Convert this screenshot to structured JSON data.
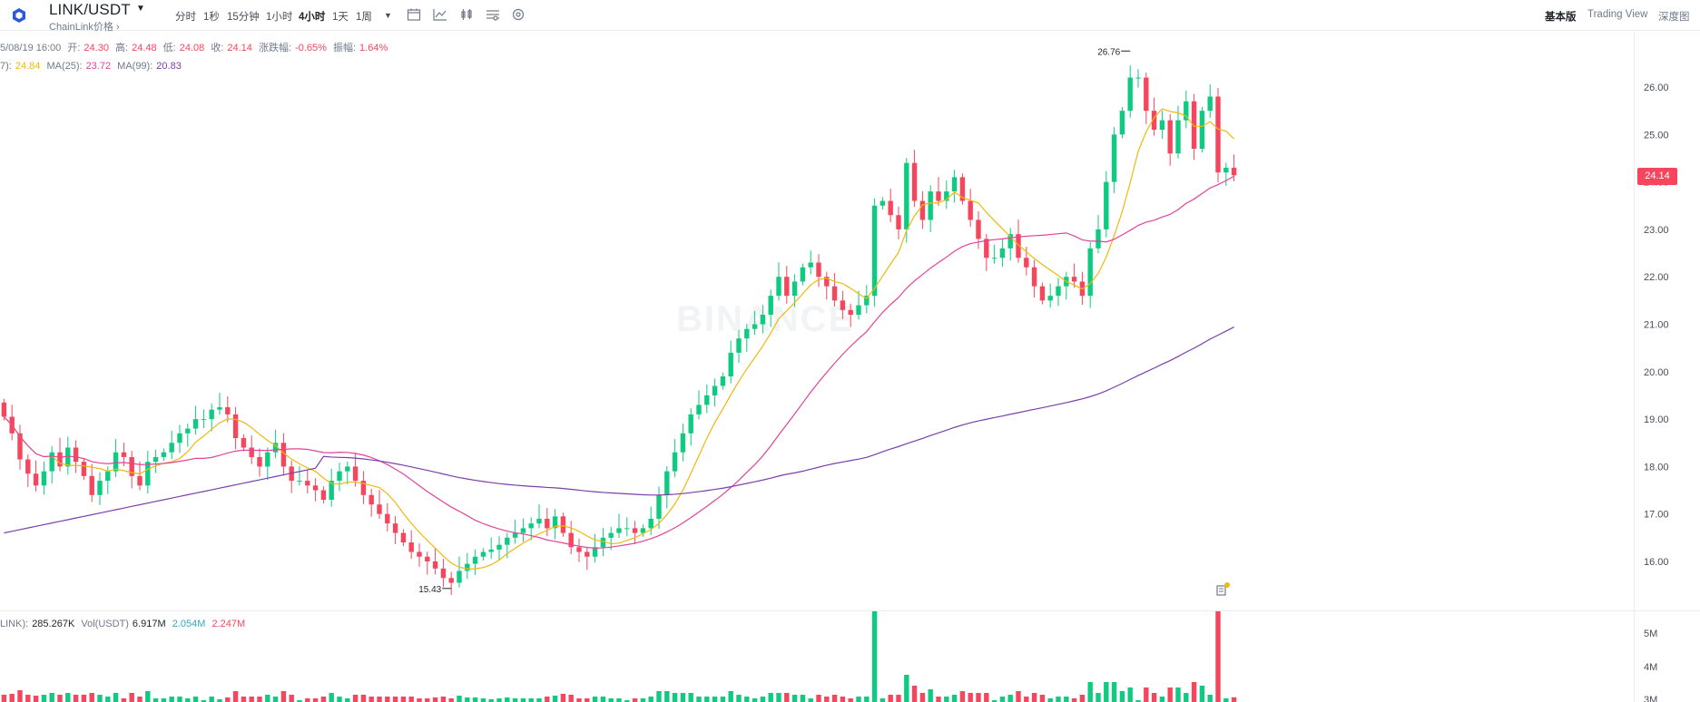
{
  "header": {
    "pair": "LINK/USDT",
    "subtitle": "ChainLink价格 ›",
    "intervals": [
      "分时",
      "1秒",
      "15分钟",
      "1小时",
      "4小时",
      "1天",
      "1周"
    ],
    "active_interval": "4小时",
    "views": [
      "基本版",
      "Trading View",
      "深度图"
    ],
    "active_view": "基本版"
  },
  "ohlc": {
    "date": "5/08/19 16:00",
    "open_label": "开:",
    "open": "24.30",
    "high_label": "高:",
    "high": "24.48",
    "low_label": "低:",
    "low": "24.08",
    "close_label": "收:",
    "close": "24.14",
    "change_label": "涨跌幅:",
    "change": "-0.65%",
    "amp_label": "振幅:",
    "amp": "1.64%"
  },
  "ma": {
    "ma7_label": "7):",
    "ma7": "24.84",
    "ma25_label": "MA(25):",
    "ma25": "23.72",
    "ma99_label": "MA(99):",
    "ma99": "20.83"
  },
  "volume_info": {
    "label1": "LINK):",
    "vol_link": "285.267K",
    "label2": "Vol(USDT)",
    "vol_usdt": "6.917M",
    "buy": "2.054M",
    "sell": "2.247M"
  },
  "price_axis": [
    "26.00",
    "25.00",
    "24.00",
    "23.00",
    "22.00",
    "21.00",
    "20.00",
    "19.00",
    "18.00",
    "17.00",
    "16.00"
  ],
  "volume_axis": [
    "5M",
    "4M",
    "3M"
  ],
  "last_price": "24.14",
  "annotations": {
    "high": "26.76",
    "low": "15.43"
  },
  "watermark": "BINANCE",
  "colors": {
    "up": "#0ecb81",
    "down": "#f6465d",
    "ma7": "#f0b90b",
    "ma25": "#e0439b",
    "ma99": "#7b3fa9"
  },
  "chart_data": {
    "type": "candlestick",
    "ylim": [
      15.0,
      27.0
    ],
    "close": [
      19.05,
      18.7,
      18.15,
      17.85,
      17.6,
      17.9,
      18.3,
      18.0,
      18.4,
      18.1,
      17.8,
      17.4,
      17.7,
      17.9,
      18.3,
      18.2,
      17.8,
      17.6,
      18.1,
      18.2,
      18.3,
      18.5,
      18.7,
      18.8,
      19.0,
      19.0,
      19.2,
      19.25,
      19.1,
      18.6,
      18.4,
      18.2,
      18.0,
      18.3,
      18.5,
      18.0,
      17.7,
      17.7,
      17.6,
      17.5,
      17.3,
      17.7,
      17.9,
      18.0,
      17.7,
      17.4,
      17.2,
      17.0,
      16.8,
      16.6,
      16.4,
      16.2,
      16.1,
      16.0,
      15.85,
      15.65,
      15.55,
      15.8,
      15.95,
      16.1,
      16.2,
      16.25,
      16.35,
      16.5,
      16.6,
      16.7,
      16.8,
      16.9,
      16.7,
      16.95,
      16.6,
      16.3,
      16.2,
      16.1,
      16.3,
      16.5,
      16.6,
      16.7,
      16.7,
      16.6,
      16.7,
      16.9,
      17.4,
      17.9,
      18.3,
      18.7,
      19.1,
      19.3,
      19.5,
      19.7,
      19.9,
      20.4,
      20.7,
      20.9,
      21.0,
      21.2,
      21.6,
      22.0,
      21.6,
      21.9,
      22.2,
      22.3,
      22.0,
      21.8,
      21.5,
      21.3,
      21.2,
      21.4,
      21.6,
      23.5,
      23.6,
      23.3,
      23.0,
      24.4,
      23.6,
      23.2,
      23.8,
      23.6,
      23.8,
      24.1,
      23.6,
      23.2,
      22.8,
      22.4,
      22.4,
      22.6,
      22.9,
      22.4,
      22.2,
      21.8,
      21.5,
      21.6,
      21.8,
      22.0,
      21.9,
      21.6,
      22.6,
      23.0,
      24.0,
      25.0,
      25.5,
      26.2,
      26.2,
      25.5,
      25.1,
      25.3,
      24.6,
      25.3,
      25.7,
      24.7,
      25.5,
      25.8,
      24.2,
      24.3,
      24.14
    ]
  }
}
